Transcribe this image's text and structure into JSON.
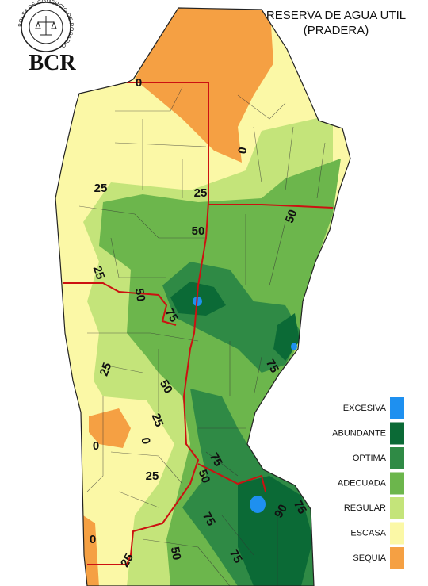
{
  "logo": {
    "ring_text": "BOLSA DE COMERCIO DE ROSARIO",
    "acronym": "BCR"
  },
  "title": {
    "line1": "RESERVA DE AGUA UTIL",
    "line2": "(PRADERA)"
  },
  "legend": [
    {
      "label": "EXCESIVA",
      "color": "#1e90f0"
    },
    {
      "label": "ABUNDANTE",
      "color": "#0b6a36"
    },
    {
      "label": "OPTIMA",
      "color": "#2f8a45"
    },
    {
      "label": "ADECUADA",
      "color": "#6cb64c"
    },
    {
      "label": "REGULAR",
      "color": "#c4e47a"
    },
    {
      "label": "ESCASA",
      "color": "#fbf8a6"
    },
    {
      "label": "SEQUIA",
      "color": "#f5a043"
    }
  ],
  "contour_labels": [
    0,
    0,
    25,
    25,
    50,
    50,
    25,
    50,
    75,
    25,
    50,
    75,
    0,
    25,
    25,
    0,
    75,
    50,
    75,
    90,
    75,
    0,
    25,
    50,
    75
  ]
}
